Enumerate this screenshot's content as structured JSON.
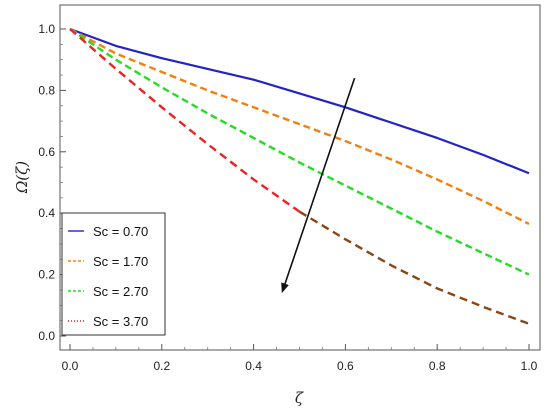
{
  "chart_data": {
    "type": "line",
    "xlabel": "ζ",
    "ylabel": "Ω(ζ)",
    "xlim": [
      0.0,
      1.0
    ],
    "ylim": [
      0.0,
      1.0
    ],
    "x_ticks": [
      "0.0",
      "0.2",
      "0.4",
      "0.6",
      "0.8",
      "1.0"
    ],
    "y_ticks": [
      "0.0",
      "0.2",
      "0.4",
      "0.6",
      "0.8",
      "1.0"
    ],
    "grid": false,
    "legend_position": "bottom-left",
    "x": [
      0.0,
      0.1,
      0.2,
      0.3,
      0.4,
      0.5,
      0.6,
      0.7,
      0.8,
      0.9,
      1.0
    ],
    "series": [
      {
        "name": "Sc = 0.70",
        "color": "#2222cc",
        "dash": "solid",
        "values": [
          1.0,
          0.945,
          0.905,
          0.87,
          0.835,
          0.79,
          0.745,
          0.695,
          0.645,
          0.59,
          0.53
        ]
      },
      {
        "name": "Sc = 1.70",
        "color": "#f08010",
        "dash": "dashed",
        "values": [
          1.0,
          0.92,
          0.86,
          0.8,
          0.745,
          0.69,
          0.635,
          0.575,
          0.51,
          0.44,
          0.365
        ]
      },
      {
        "name": "Sc = 2.70",
        "color": "#22dd22",
        "dash": "dashed",
        "values": [
          1.0,
          0.9,
          0.81,
          0.725,
          0.645,
          0.565,
          0.49,
          0.415,
          0.34,
          0.27,
          0.2
        ]
      },
      {
        "name": "Sc = 3.70",
        "color": "#ee2222",
        "color_after_arrow": "#8b4513",
        "dash": "dashed",
        "values": [
          1.0,
          0.87,
          0.745,
          0.625,
          0.51,
          0.405,
          0.315,
          0.23,
          0.155,
          0.095,
          0.04
        ]
      }
    ],
    "annotation": {
      "type": "arrow",
      "from": [
        0.62,
        0.84
      ],
      "to": [
        0.465,
        0.155
      ],
      "color": "#111111"
    }
  }
}
